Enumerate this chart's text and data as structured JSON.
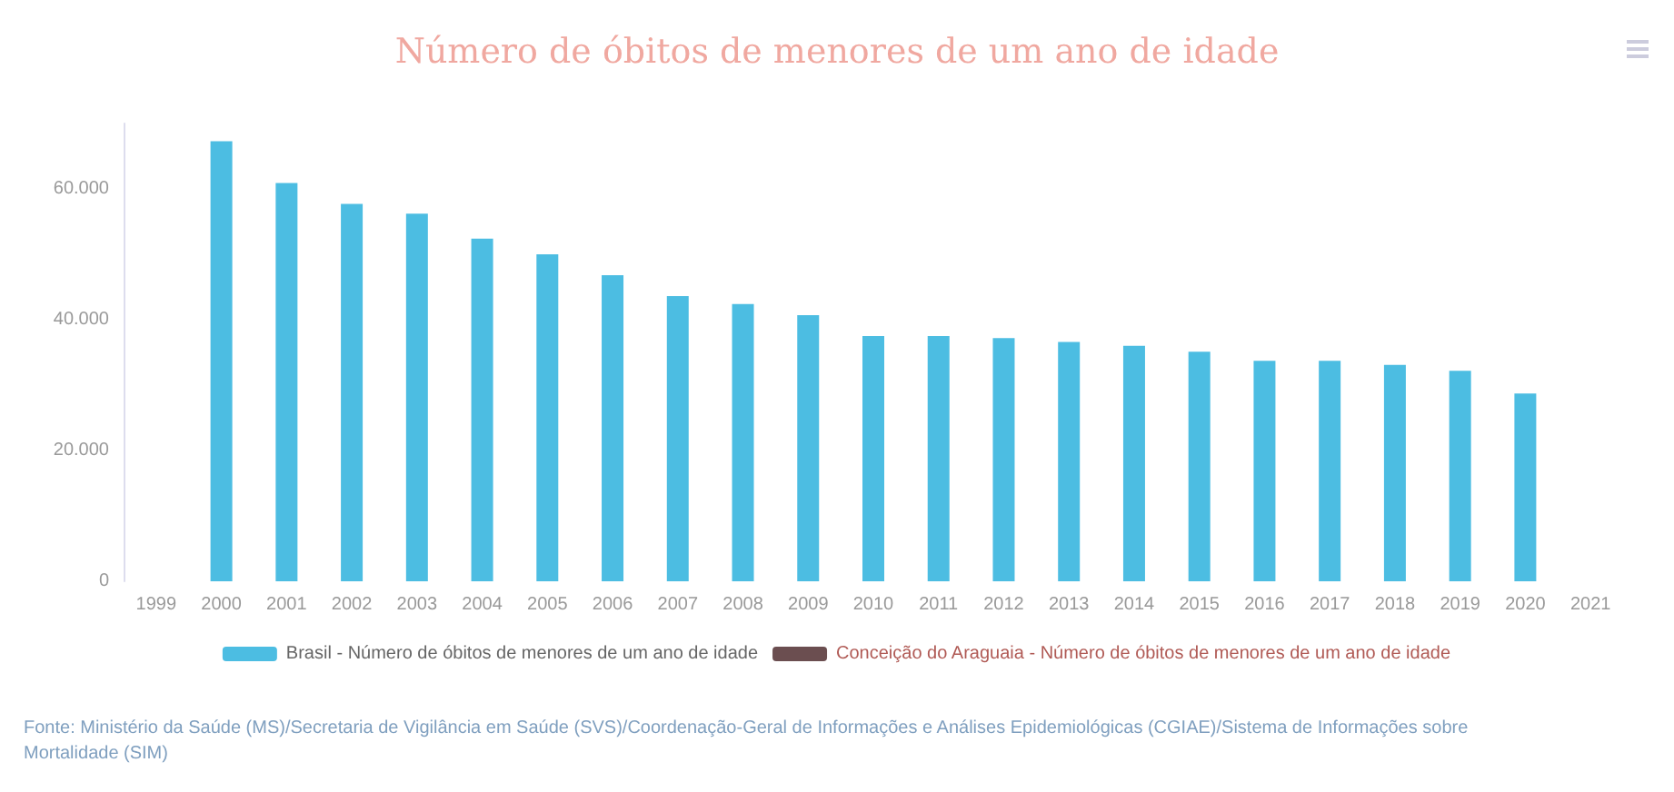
{
  "chart_data": {
    "type": "bar",
    "title": "Número de óbitos de menores de um ano de idade",
    "categories": [
      "1999",
      "2000",
      "2001",
      "2002",
      "2003",
      "2004",
      "2005",
      "2006",
      "2007",
      "2008",
      "2009",
      "2010",
      "2011",
      "2012",
      "2013",
      "2014",
      "2015",
      "2016",
      "2017",
      "2018",
      "2019",
      "2020",
      "2021"
    ],
    "series": [
      {
        "name": "Brasil - Número de óbitos de menores de um ano de idade",
        "color": "#4cbde2",
        "values": [
          null,
          67300,
          60900,
          57700,
          56200,
          52400,
          50000,
          46800,
          43600,
          42400,
          40700,
          37500,
          37500,
          37200,
          36600,
          36000,
          35100,
          33700,
          33700,
          33100,
          32200,
          28700,
          null
        ]
      },
      {
        "name": "Conceição do Araguaia - Número de óbitos de menores de um ano de idade",
        "color": "#6b4e50",
        "values": [
          null,
          null,
          null,
          null,
          null,
          null,
          null,
          null,
          null,
          null,
          null,
          null,
          null,
          null,
          null,
          null,
          null,
          null,
          null,
          null,
          null,
          null,
          null
        ]
      }
    ],
    "ylim": [
      0,
      70000
    ],
    "yticks": [
      0,
      {
        "value": 20000,
        "label": "20.000"
      },
      {
        "value": 40000,
        "label": "40.000"
      },
      {
        "value": 60000,
        "label": "60.000"
      }
    ],
    "grid": false,
    "legend": "bottom",
    "annotations": [
      "Fonte: Ministério da Saúde (MS)/Secretaria de Vigilância em Saúde (SVS)/Coordenação-Geral de Informações e Análises Epidemiológicas (CGIAE)/Sistema de Informações sobre Mortalidade (SIM)"
    ]
  }
}
